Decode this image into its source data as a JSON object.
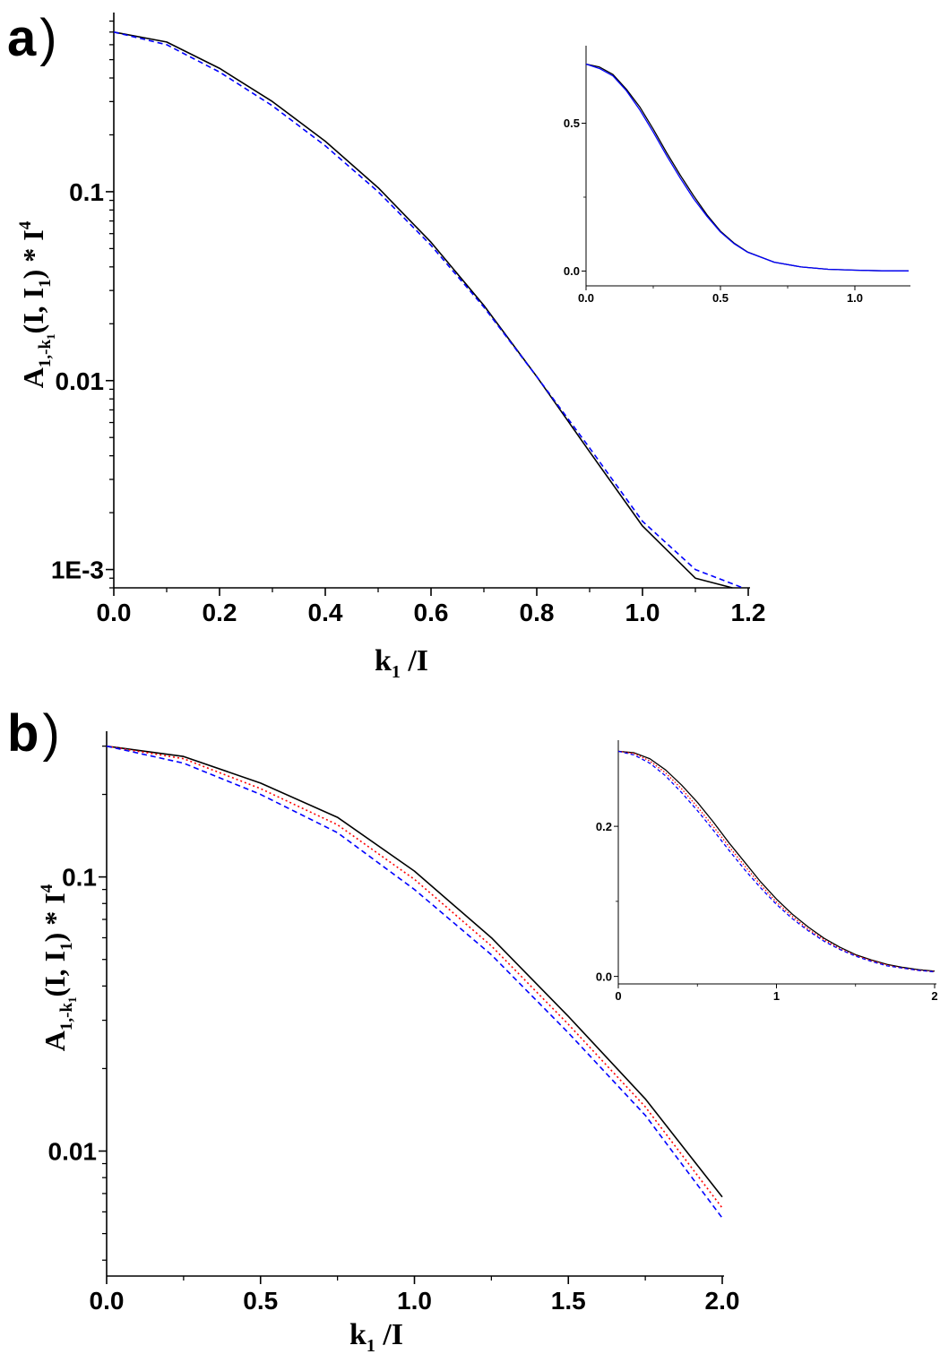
{
  "figure": {
    "panel_a": {
      "label": "a",
      "ylabel": {
        "main": "A",
        "sub1": "1,-k",
        "sub2": "1",
        "mid": "(I, I",
        "sub3": "1",
        "tail": ") * I",
        "sup": "4"
      },
      "xlabel": {
        "main": "k",
        "sub": "1",
        "tail": " /I"
      }
    },
    "panel_b": {
      "label": "b",
      "ylabel": {
        "main": "A",
        "sub1": "1,-k",
        "sub2": "1",
        "mid": "(I, I",
        "sub3": "1",
        "tail": ") * I",
        "sup": "4"
      },
      "xlabel": {
        "main": "k",
        "sub": "1",
        "tail": " /I"
      }
    }
  },
  "chart_data": [
    {
      "id": "a-main",
      "type": "line",
      "yscale": "log",
      "xlim": [
        0,
        1.2
      ],
      "ylim": [
        0.0008,
        0.85
      ],
      "xticks": [
        0.0,
        0.2,
        0.4,
        0.6,
        0.8,
        1.0,
        1.2
      ],
      "xtick_labels": [
        "0.0",
        "0.2",
        "0.4",
        "0.6",
        "0.8",
        "1.0",
        "1.2"
      ],
      "yticks": [
        0.001,
        0.01,
        0.1
      ],
      "ytick_labels": [
        "1E-3",
        "0.01",
        "0.1"
      ],
      "series": [
        {
          "color": "#000000",
          "dash": "solid",
          "x": [
            0,
            0.1,
            0.2,
            0.3,
            0.4,
            0.5,
            0.6,
            0.7,
            0.8,
            0.9,
            1.0,
            1.1,
            1.17
          ],
          "y": [
            0.7,
            0.62,
            0.45,
            0.3,
            0.185,
            0.105,
            0.054,
            0.025,
            0.0105,
            0.0042,
            0.0017,
            0.0009,
            0.0008
          ]
        },
        {
          "color": "#0000ff",
          "dash": "dashed",
          "x": [
            0,
            0.1,
            0.2,
            0.3,
            0.4,
            0.5,
            0.6,
            0.7,
            0.8,
            0.9,
            1.0,
            1.1,
            1.19
          ],
          "y": [
            0.7,
            0.6,
            0.43,
            0.285,
            0.175,
            0.1,
            0.052,
            0.0245,
            0.0105,
            0.0044,
            0.0018,
            0.001,
            0.0008
          ]
        }
      ]
    },
    {
      "id": "a-inset",
      "type": "line",
      "yscale": "linear",
      "xlim": [
        0,
        1.2
      ],
      "ylim": [
        -0.05,
        0.75
      ],
      "xticks": [
        0.0,
        0.5,
        1.0
      ],
      "xtick_labels": [
        "0.0",
        "0.5",
        "1.0"
      ],
      "yticks": [
        0.0,
        0.5
      ],
      "ytick_labels": [
        "0.0",
        "0.5"
      ],
      "series": [
        {
          "color": "#000000",
          "dash": "solid",
          "x": [
            0,
            0.05,
            0.1,
            0.15,
            0.2,
            0.25,
            0.3,
            0.35,
            0.4,
            0.45,
            0.5,
            0.55,
            0.6,
            0.7,
            0.8,
            0.9,
            1.0,
            1.1,
            1.2
          ],
          "y": [
            0.7,
            0.69,
            0.665,
            0.615,
            0.555,
            0.48,
            0.4,
            0.325,
            0.255,
            0.19,
            0.135,
            0.095,
            0.065,
            0.03,
            0.014,
            0.006,
            0.003,
            0.001,
            0.0005
          ]
        },
        {
          "color": "#0000ff",
          "dash": "solid",
          "x": [
            0,
            0.05,
            0.1,
            0.15,
            0.2,
            0.25,
            0.3,
            0.35,
            0.4,
            0.45,
            0.5,
            0.55,
            0.6,
            0.7,
            0.8,
            0.9,
            1.0,
            1.1,
            1.2
          ],
          "y": [
            0.7,
            0.685,
            0.66,
            0.61,
            0.545,
            0.47,
            0.39,
            0.315,
            0.245,
            0.185,
            0.132,
            0.093,
            0.064,
            0.03,
            0.014,
            0.006,
            0.003,
            0.001,
            0.0005
          ]
        }
      ]
    },
    {
      "id": "b-main",
      "type": "line",
      "yscale": "log",
      "xlim": [
        0,
        2.0
      ],
      "ylim": [
        0.0035,
        0.33
      ],
      "xticks": [
        0.0,
        0.5,
        1.0,
        1.5,
        2.0
      ],
      "xtick_labels": [
        "0.0",
        "0.5",
        "1.0",
        "1.5",
        "2.0"
      ],
      "yticks": [
        0.01,
        0.1
      ],
      "ytick_labels": [
        "0.01",
        "0.1"
      ],
      "series": [
        {
          "color": "#000000",
          "dash": "solid",
          "x": [
            0,
            0.25,
            0.5,
            0.75,
            1.0,
            1.25,
            1.5,
            1.75,
            2.0
          ],
          "y": [
            0.3,
            0.275,
            0.22,
            0.165,
            0.105,
            0.06,
            0.031,
            0.0155,
            0.0068
          ]
        },
        {
          "color": "#ff0000",
          "dash": "dotted",
          "x": [
            0,
            0.25,
            0.5,
            0.75,
            1.0,
            1.25,
            1.5,
            1.75,
            2.0
          ],
          "y": [
            0.3,
            0.27,
            0.21,
            0.155,
            0.098,
            0.056,
            0.029,
            0.0145,
            0.0062
          ]
        },
        {
          "color": "#0000ff",
          "dash": "dashed",
          "x": [
            0,
            0.25,
            0.5,
            0.75,
            1.0,
            1.25,
            1.5,
            1.75,
            2.0
          ],
          "y": [
            0.3,
            0.26,
            0.2,
            0.145,
            0.09,
            0.052,
            0.027,
            0.0135,
            0.0057
          ]
        }
      ]
    },
    {
      "id": "b-inset",
      "type": "line",
      "yscale": "linear",
      "xlim": [
        0,
        2.0
      ],
      "ylim": [
        -0.01,
        0.31
      ],
      "xticks": [
        0,
        1,
        2
      ],
      "xtick_labels": [
        "0",
        "1",
        "2"
      ],
      "yticks": [
        0.0,
        0.2
      ],
      "ytick_labels": [
        "0.0",
        "0.2"
      ],
      "series": [
        {
          "color": "#000000",
          "dash": "solid",
          "x": [
            0,
            0.1,
            0.2,
            0.3,
            0.4,
            0.5,
            0.6,
            0.7,
            0.8,
            0.9,
            1.0,
            1.1,
            1.2,
            1.3,
            1.4,
            1.5,
            1.6,
            1.7,
            1.8,
            1.9,
            2.0
          ],
          "y": [
            0.3,
            0.298,
            0.29,
            0.275,
            0.255,
            0.232,
            0.206,
            0.178,
            0.152,
            0.126,
            0.103,
            0.083,
            0.066,
            0.051,
            0.039,
            0.029,
            0.022,
            0.016,
            0.012,
            0.009,
            0.007
          ]
        },
        {
          "color": "#ff0000",
          "dash": "dotted",
          "x": [
            0,
            0.1,
            0.2,
            0.3,
            0.4,
            0.5,
            0.6,
            0.7,
            0.8,
            0.9,
            1.0,
            1.1,
            1.2,
            1.3,
            1.4,
            1.5,
            1.6,
            1.7,
            1.8,
            1.9,
            2.0
          ],
          "y": [
            0.3,
            0.297,
            0.287,
            0.271,
            0.25,
            0.226,
            0.2,
            0.173,
            0.147,
            0.122,
            0.099,
            0.08,
            0.063,
            0.049,
            0.037,
            0.028,
            0.021,
            0.015,
            0.011,
            0.008,
            0.0065
          ]
        },
        {
          "color": "#0000ff",
          "dash": "dashed",
          "x": [
            0,
            0.1,
            0.2,
            0.3,
            0.4,
            0.5,
            0.6,
            0.7,
            0.8,
            0.9,
            1.0,
            1.1,
            1.2,
            1.3,
            1.4,
            1.5,
            1.6,
            1.7,
            1.8,
            1.9,
            2.0
          ],
          "y": [
            0.3,
            0.295,
            0.284,
            0.267,
            0.245,
            0.221,
            0.195,
            0.168,
            0.142,
            0.118,
            0.096,
            0.077,
            0.061,
            0.047,
            0.036,
            0.027,
            0.02,
            0.014,
            0.011,
            0.008,
            0.006
          ]
        }
      ]
    }
  ]
}
